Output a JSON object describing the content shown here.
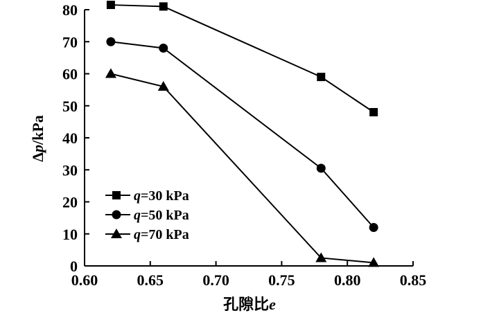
{
  "chart_data": {
    "type": "line",
    "xlabel_prefix": "孔隙比",
    "xlabel_var": "e",
    "ylabel_prefix": "Δ",
    "ylabel_var": "p",
    "ylabel_suffix": "/kPa",
    "xlim": [
      0.6,
      0.85
    ],
    "ylim": [
      0,
      80
    ],
    "xticks": [
      "0.60",
      "0.65",
      "0.70",
      "0.75",
      "0.80",
      "0.85"
    ],
    "yticks": [
      "0",
      "10",
      "20",
      "30",
      "40",
      "50",
      "60",
      "70",
      "80"
    ],
    "grid": false,
    "legend_position": "bottom-left",
    "x": [
      0.62,
      0.66,
      0.78,
      0.82
    ],
    "series": [
      {
        "var": "q",
        "name": "=30 kPa",
        "marker": "square",
        "values": [
          81.5,
          81,
          59,
          48
        ]
      },
      {
        "var": "q",
        "name": "=50 kPa",
        "marker": "circle",
        "values": [
          70,
          68,
          30.5,
          12
        ]
      },
      {
        "var": "q",
        "name": "=70 kPa",
        "marker": "triangle",
        "values": [
          60,
          56,
          2.5,
          1
        ]
      }
    ]
  }
}
